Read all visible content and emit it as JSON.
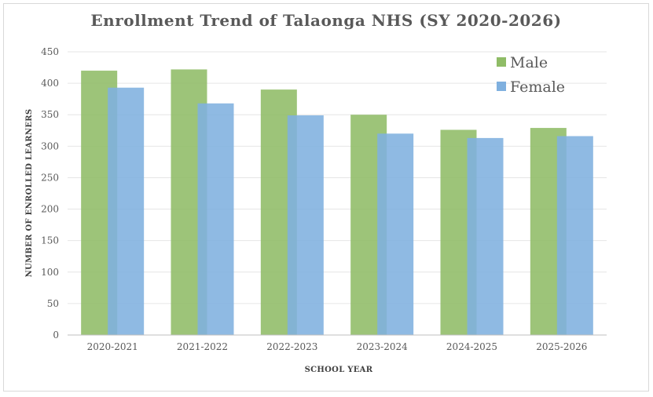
{
  "chart_data": {
    "type": "bar",
    "title": "Enrollment Trend of Talaonga NHS (SY 2020-2026)",
    "xlabel": "SCHOOL YEAR",
    "ylabel": "NUMBER OF ENROLLED LEARNERS",
    "categories": [
      "2020-2021",
      "2021-2022",
      "2022-2023",
      "2023-2024",
      "2024-2025",
      "2025-2026"
    ],
    "series": [
      {
        "name": "Male",
        "values": [
          420,
          422,
          390,
          350,
          326,
          329
        ],
        "color": "#8fbc66"
      },
      {
        "name": "Female",
        "values": [
          393,
          368,
          349,
          320,
          313,
          316
        ],
        "color": "#7fb0df"
      }
    ],
    "ylim": [
      0,
      450
    ],
    "yticks": [
      0,
      50,
      100,
      150,
      200,
      250,
      300,
      350,
      400,
      450
    ],
    "grid": true,
    "legend_position": "top-right"
  }
}
